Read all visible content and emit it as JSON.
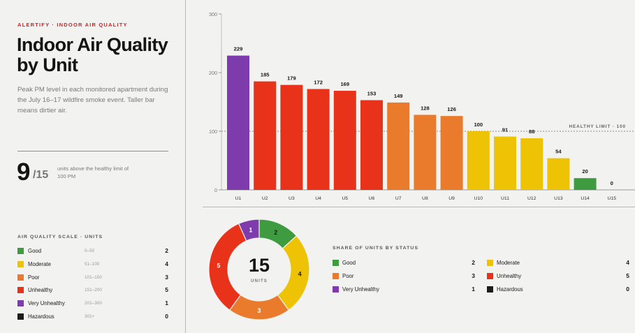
{
  "header": {
    "eyebrow": "ALERTIFY · INDOOR AIR QUALITY",
    "title": "Indoor Air Quality by Unit",
    "subtitle": "Peak PM level in each monitored apartment during the July 16–17 wildfire smoke event. Taller bar means dirtier air."
  },
  "kpi": {
    "value": "9",
    "denominator": "/15",
    "text": "units above the healthy limit of 100 PM"
  },
  "scale": {
    "title": "AIR QUALITY SCALE · UNITS",
    "items": [
      {
        "name": "Good",
        "range": "0–50",
        "count": "2",
        "color": "#3f9b3f"
      },
      {
        "name": "Moderate",
        "range": "51–100",
        "count": "4",
        "color": "#eec306"
      },
      {
        "name": "Poor",
        "range": "101–150",
        "count": "3",
        "color": "#ea7b2c"
      },
      {
        "name": "Unhealthy",
        "range": "151–200",
        "count": "5",
        "color": "#e9321a"
      },
      {
        "name": "Very Unhealthy",
        "range": "201–300",
        "count": "1",
        "color": "#7d3bab"
      },
      {
        "name": "Hazardous",
        "range": "301+",
        "count": "0",
        "color": "#1c1c1c"
      }
    ]
  },
  "chart_data": {
    "type": "bar",
    "categories": [
      "U1",
      "U2",
      "U3",
      "U4",
      "U5",
      "U6",
      "U7",
      "U8",
      "U9",
      "U10",
      "U11",
      "U12",
      "U13",
      "U14",
      "U15"
    ],
    "values": [
      229,
      185,
      179,
      172,
      169,
      153,
      149,
      128,
      126,
      100,
      91,
      88,
      54,
      20,
      0
    ],
    "colors": [
      "#7d3bab",
      "#e9321a",
      "#e9321a",
      "#e9321a",
      "#e9321a",
      "#e9321a",
      "#ea7b2c",
      "#ea7b2c",
      "#ea7b2c",
      "#eec306",
      "#eec306",
      "#eec306",
      "#eec306",
      "#3f9b3f",
      "#3f9b3f"
    ],
    "yticks": [
      0,
      100,
      200,
      300
    ],
    "ylim": [
      0,
      300
    ],
    "threshold": {
      "value": 100,
      "label": "HEALTHY LIMIT · 100"
    },
    "grid": false
  },
  "donut": {
    "total": "15",
    "label": "UNITS",
    "segments": [
      {
        "name": "Good",
        "value": 2,
        "color": "#3f9b3f"
      },
      {
        "name": "Moderate",
        "value": 4,
        "color": "#eec306"
      },
      {
        "name": "Poor",
        "value": 3,
        "color": "#ea7b2c"
      },
      {
        "name": "Unhealthy",
        "value": 5,
        "color": "#e9321a"
      },
      {
        "name": "Very Unhealthy",
        "value": 1,
        "color": "#7d3bab"
      }
    ]
  },
  "share": {
    "title": "SHARE OF UNITS BY STATUS",
    "items": [
      {
        "name": "Good",
        "count": "2",
        "color": "#3f9b3f"
      },
      {
        "name": "Moderate",
        "count": "4",
        "color": "#eec306"
      },
      {
        "name": "Poor",
        "count": "3",
        "color": "#ea7b2c"
      },
      {
        "name": "Unhealthy",
        "count": "5",
        "color": "#e9321a"
      },
      {
        "name": "Very Unhealthy",
        "count": "1",
        "color": "#7d3bab"
      },
      {
        "name": "Hazardous",
        "count": "0",
        "color": "#1c1c1c"
      }
    ]
  }
}
